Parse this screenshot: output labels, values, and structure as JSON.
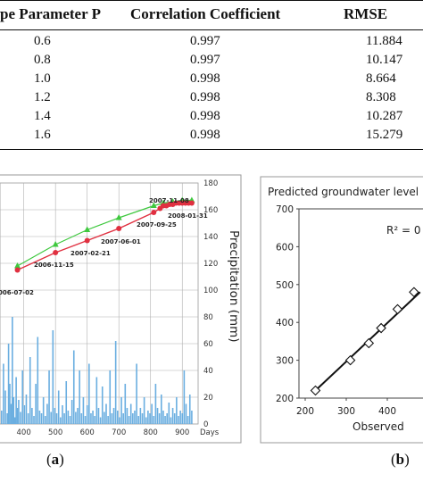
{
  "table": {
    "headers": [
      "pe Parameter P",
      "Correlation Coefficient",
      "RMSE"
    ],
    "rows": [
      [
        "0.6",
        "0.997",
        "11.884"
      ],
      [
        "0.8",
        "0.997",
        "10.147"
      ],
      [
        "1.0",
        "0.998",
        "8.664"
      ],
      [
        "1.2",
        "0.998",
        "8.308"
      ],
      [
        "1.4",
        "0.998",
        "10.287"
      ],
      [
        "1.6",
        "0.998",
        "15.279"
      ]
    ]
  },
  "captions": {
    "a_paren_open": "(",
    "a_letter": "a",
    "a_paren_close": ")",
    "b_paren_open": "(",
    "b_letter": "b",
    "b_paren_close": ")"
  },
  "chart_data": [
    {
      "type": "line",
      "panel": "a",
      "xlabel": "Days",
      "ylabel_right": "Precipitation (mm)",
      "x_ticks": [
        "400",
        "500",
        "600",
        "700",
        "800",
        "900"
      ],
      "y_right_ticks": [
        "0",
        "20",
        "40",
        "60",
        "80",
        "100",
        "120",
        "140",
        "160",
        "180"
      ],
      "xlim": [
        325,
        950
      ],
      "y_right_lim": [
        0,
        180
      ],
      "colors": {
        "series_red": "#e03040",
        "series_green": "#3ec83e",
        "bars": "#6aaee0",
        "grid": "#b0b0b0"
      },
      "annotations": [
        "2007-11-08",
        "2008-01-31",
        "2007-09-25",
        "2007-06-01",
        "2007-02-21",
        "2006-11-15",
        "006-07-02"
      ],
      "series": [
        {
          "marker": "circle",
          "color": "#e03040",
          "x": [
            380,
            500,
            600,
            700,
            810,
            830,
            840,
            850,
            860,
            870,
            880,
            890,
            900,
            910,
            920,
            930
          ],
          "y": [
            115,
            128,
            137,
            146,
            158,
            161,
            163,
            163,
            164,
            164,
            165,
            165,
            165,
            165,
            165,
            165
          ]
        },
        {
          "marker": "triangle",
          "color": "#3ec83e",
          "x": [
            380,
            500,
            600,
            700,
            810,
            840,
            870,
            900,
            930
          ],
          "y": [
            118,
            134,
            145,
            154,
            163,
            165,
            166,
            167,
            167
          ]
        }
      ],
      "bars": {
        "x": [
          330,
          336,
          342,
          348,
          352,
          356,
          360,
          364,
          368,
          372,
          376,
          380,
          384,
          390,
          396,
          402,
          408,
          414,
          420,
          426,
          432,
          438,
          444,
          450,
          456,
          462,
          468,
          474,
          480,
          486,
          492,
          498,
          504,
          510,
          516,
          522,
          528,
          534,
          540,
          546,
          552,
          558,
          564,
          570,
          576,
          582,
          588,
          594,
          600,
          606,
          612,
          618,
          624,
          630,
          636,
          642,
          648,
          654,
          660,
          666,
          672,
          678,
          684,
          690,
          696,
          702,
          708,
          714,
          720,
          726,
          732,
          738,
          744,
          750,
          756,
          762,
          768,
          774,
          780,
          786,
          792,
          798,
          804,
          810,
          816,
          822,
          828,
          834,
          840,
          846,
          852,
          858,
          864,
          870,
          876,
          882,
          888,
          894,
          900,
          906,
          912,
          918,
          924,
          930
        ],
        "y": [
          10,
          45,
          25,
          8,
          60,
          30,
          15,
          80,
          20,
          5,
          35,
          12,
          18,
          9,
          40,
          14,
          22,
          8,
          50,
          12,
          6,
          30,
          65,
          10,
          8,
          20,
          6,
          15,
          40,
          9,
          70,
          12,
          8,
          25,
          5,
          14,
          8,
          32,
          10,
          6,
          18,
          55,
          9,
          12,
          40,
          8,
          20,
          6,
          14,
          45,
          8,
          10,
          6,
          35,
          12,
          5,
          28,
          9,
          15,
          6,
          40,
          8,
          12,
          62,
          10,
          5,
          20,
          8,
          30,
          12,
          6,
          15,
          8,
          10,
          45,
          6,
          12,
          8,
          20,
          5,
          10,
          8,
          15,
          6,
          30,
          12,
          8,
          22,
          10,
          6,
          8,
          16,
          5,
          12,
          8,
          20,
          6,
          10,
          8,
          40,
          15,
          6,
          22,
          10
        ]
      }
    },
    {
      "type": "scatter",
      "panel": "b",
      "title": "Predicted groundwater level (m",
      "xlabel": "Observed",
      "annotation": "R² = 0",
      "x_ticks": [
        "200",
        "300",
        "400"
      ],
      "y_ticks": [
        "200",
        "300",
        "400",
        "500",
        "600",
        "700"
      ],
      "xlim": [
        195,
        480
      ],
      "ylim": [
        200,
        700
      ],
      "points": {
        "x": [
          225,
          310,
          355,
          385,
          425,
          465
        ],
        "y": [
          220,
          300,
          345,
          385,
          435,
          480
        ]
      },
      "fit_line": {
        "x": [
          220,
          480
        ],
        "y": [
          215,
          480
        ]
      }
    }
  ]
}
